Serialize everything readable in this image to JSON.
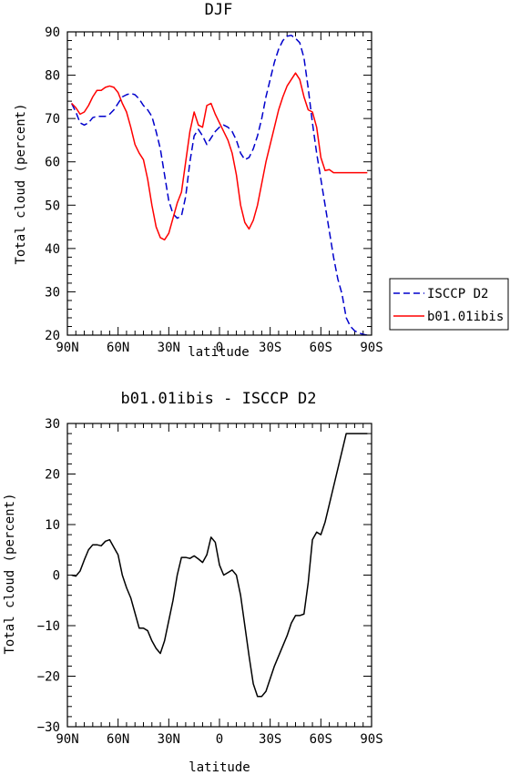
{
  "chart_data": [
    {
      "type": "line",
      "title": "DJF",
      "xlabel": "latitude",
      "ylabel": "Total cloud (percent)",
      "xlim": [
        -90,
        90
      ],
      "ylim": [
        20,
        90
      ],
      "x_ticks": [
        {
          "value": -90,
          "label": "90N"
        },
        {
          "value": -60,
          "label": "60N"
        },
        {
          "value": -30,
          "label": "30N"
        },
        {
          "value": 0,
          "label": "0"
        },
        {
          "value": 30,
          "label": "30S"
        },
        {
          "value": 60,
          "label": "60S"
        },
        {
          "value": 90,
          "label": "90S"
        }
      ],
      "y_ticks": [
        20,
        30,
        40,
        50,
        60,
        70,
        80,
        90
      ],
      "legend_position": "right",
      "series": [
        {
          "name": "ISCCP D2",
          "color": "#0000cc",
          "style": "dashed",
          "x": [
            -87.5,
            -85,
            -82.5,
            -80,
            -77.5,
            -75,
            -72.5,
            -70,
            -67.5,
            -65,
            -62.5,
            -60,
            -57.5,
            -55,
            -52.5,
            -50,
            -47.5,
            -45,
            -42.5,
            -40,
            -37.5,
            -35,
            -32.5,
            -30,
            -27.5,
            -25,
            -22.5,
            -20,
            -17.5,
            -15,
            -12.5,
            -10,
            -7.5,
            -5,
            -2.5,
            0,
            2.5,
            5,
            7.5,
            10,
            12.5,
            15,
            17.5,
            20,
            22.5,
            25,
            27.5,
            30,
            32.5,
            35,
            37.5,
            40,
            42.5,
            45,
            47.5,
            50,
            52.5,
            55,
            57.5,
            60,
            62.5,
            65,
            67.5,
            70,
            72.5,
            75,
            77.5,
            80,
            82.5,
            85,
            87.5
          ],
          "values": [
            73.5,
            71.5,
            69,
            68.5,
            69,
            70.2,
            70.5,
            70.5,
            70.5,
            71,
            72,
            73.5,
            75,
            75.5,
            75.8,
            75.5,
            74.5,
            73,
            72,
            70.5,
            67,
            63,
            57,
            51,
            48,
            47,
            47.5,
            52,
            60,
            66,
            67.5,
            66,
            64,
            65.5,
            67,
            68,
            68.5,
            68,
            67,
            65,
            62,
            60.5,
            61,
            63,
            66,
            70,
            75,
            79,
            83,
            86,
            88,
            89,
            89.2,
            88.5,
            87.5,
            84,
            77,
            69,
            62,
            56,
            50,
            44,
            38,
            33,
            29.5,
            24,
            22,
            21,
            20.5,
            20.2,
            20
          ],
          "values_note": ""
        },
        {
          "name": "b01.01ibis",
          "color": "#ff0000",
          "style": "solid",
          "x": [
            -87.5,
            -85,
            -82.5,
            -80,
            -77.5,
            -75,
            -72.5,
            -70,
            -67.5,
            -65,
            -62.5,
            -60,
            -57.5,
            -55,
            -52.5,
            -50,
            -47.5,
            -45,
            -42.5,
            -40,
            -37.5,
            -35,
            -32.5,
            -30,
            -27.5,
            -25,
            -22.5,
            -20,
            -17.5,
            -15,
            -12.5,
            -10,
            -7.5,
            -5,
            -2.5,
            0,
            2.5,
            5,
            7.5,
            10,
            12.5,
            15,
            17.5,
            20,
            22.5,
            25,
            27.5,
            30,
            32.5,
            35,
            37.5,
            40,
            42.5,
            45,
            47.5,
            50,
            52.5,
            55,
            57.5,
            60,
            62.5,
            65,
            67.5,
            70,
            72.5,
            75,
            77.5,
            80,
            82.5,
            85,
            87.5
          ],
          "values": [
            73.5,
            72.5,
            71,
            71.5,
            73,
            75,
            76.5,
            76.5,
            77.2,
            77.5,
            77.2,
            76,
            73.5,
            71.5,
            68,
            64,
            62,
            60.5,
            56,
            50,
            45,
            42.5,
            42,
            43.5,
            47,
            50.5,
            53,
            60,
            67,
            71.5,
            68.5,
            68,
            73,
            73.5,
            71,
            69,
            67,
            65,
            62,
            57,
            50,
            46,
            44.5,
            46.5,
            50,
            55,
            60,
            64,
            68,
            72,
            75,
            77.5,
            79,
            80.5,
            79,
            75,
            72,
            71.5,
            68,
            61,
            58,
            58.2,
            57.5,
            57.5,
            57.5,
            57.5,
            57.5,
            57.5,
            57.5,
            57.5,
            57.5
          ]
        }
      ]
    },
    {
      "type": "line",
      "title": "b01.01ibis - ISCCP D2",
      "xlabel": "latitude",
      "ylabel": "Total cloud (percent)",
      "xlim": [
        -90,
        90
      ],
      "ylim": [
        -30,
        30
      ],
      "x_ticks": [
        {
          "value": -90,
          "label": "90N"
        },
        {
          "value": -60,
          "label": "60N"
        },
        {
          "value": -30,
          "label": "30N"
        },
        {
          "value": 0,
          "label": "0"
        },
        {
          "value": 30,
          "label": "30S"
        },
        {
          "value": 60,
          "label": "60S"
        },
        {
          "value": 90,
          "label": "90S"
        }
      ],
      "y_ticks": [
        -30,
        -20,
        -10,
        0,
        10,
        20,
        30
      ],
      "series": [
        {
          "color": "#000000",
          "style": "solid",
          "x": [
            -87.5,
            -85,
            -82.5,
            -80,
            -77.5,
            -75,
            -72.5,
            -70,
            -67.5,
            -65,
            -62.5,
            -60,
            -57.5,
            -55,
            -52.5,
            -50,
            -47.5,
            -45,
            -42.5,
            -40,
            -37.5,
            -35,
            -32.5,
            -30,
            -27.5,
            -25,
            -22.5,
            -20,
            -17.5,
            -15,
            -12.5,
            -10,
            -7.5,
            -5,
            -2.5,
            0,
            2.5,
            5,
            7.5,
            10,
            12.5,
            15,
            17.5,
            20,
            22.5,
            25,
            27.5,
            30,
            32.5,
            35,
            37.5,
            40,
            42.5,
            45,
            47.5,
            50,
            52.5,
            55,
            57.5,
            60,
            62.5,
            65,
            67.5,
            70,
            72.5,
            75,
            77.5,
            80,
            82.5,
            85,
            87.5
          ],
          "values": [
            0,
            -0.2,
            0.8,
            3,
            5,
            6,
            6,
            5.8,
            6.7,
            7,
            5.5,
            4,
            0,
            -2.5,
            -4.5,
            -7.5,
            -10.5,
            -10.5,
            -11,
            -13,
            -14.5,
            -15.5,
            -13,
            -9,
            -5,
            0,
            3.5,
            3.5,
            3.3,
            3.8,
            3.2,
            2.5,
            4,
            7.5,
            6.5,
            2,
            0,
            0.5,
            1,
            0,
            -4,
            -10,
            -16,
            -21.5,
            -24,
            -24,
            -23,
            -20.5,
            -18,
            -16,
            -14,
            -12,
            -9.5,
            -8,
            -8,
            -7.7,
            -1.5,
            7,
            8.5,
            8,
            10.5,
            14,
            17.5,
            21,
            24.5,
            28,
            28,
            28,
            28,
            28,
            28
          ]
        }
      ]
    }
  ]
}
